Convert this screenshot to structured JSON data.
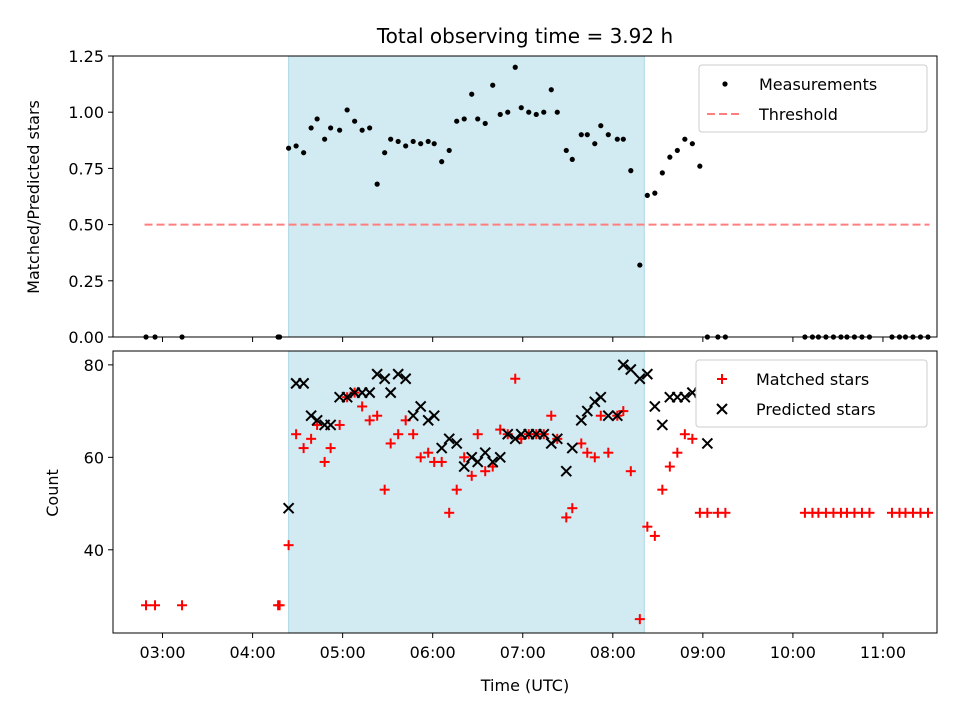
{
  "chart_data": [
    {
      "type": "scatter",
      "title": "Total observing time = 3.92 h",
      "xlabel": "",
      "ylabel": "Matched/Predicted stars",
      "ylim": [
        0,
        1.25
      ],
      "yticks": [
        "0.00",
        "0.25",
        "0.50",
        "0.75",
        "1.00",
        "1.25"
      ],
      "xticks": [
        "03:00",
        "04:00",
        "05:00",
        "06:00",
        "07:00",
        "08:00",
        "09:00",
        "10:00",
        "11:00"
      ],
      "x_axis_tick_labels_shown": false,
      "shaded_interval": [
        "04:24",
        "08:21"
      ],
      "shade_color": "#add8e6",
      "legend_position": "upper right",
      "series": [
        {
          "name": "Measurements",
          "style": "dot",
          "color": "#000000",
          "x": [
            "02:49",
            "02:55",
            "03:13",
            "04:17",
            "04:18",
            "04:24",
            "04:29",
            "04:34",
            "04:39",
            "04:43",
            "04:48",
            "04:52",
            "04:58",
            "05:03",
            "05:08",
            "05:13",
            "05:18",
            "05:23",
            "05:28",
            "05:32",
            "05:37",
            "05:42",
            "05:47",
            "05:52",
            "05:57",
            "06:01",
            "06:06",
            "06:11",
            "06:16",
            "06:21",
            "06:26",
            "06:30",
            "06:35",
            "06:40",
            "06:45",
            "06:50",
            "06:55",
            "06:59",
            "07:04",
            "07:09",
            "07:14",
            "07:19",
            "07:23",
            "07:29",
            "07:33",
            "07:39",
            "07:43",
            "07:48",
            "07:52",
            "07:57",
            "08:03",
            "08:07",
            "08:12",
            "08:18",
            "08:23",
            "08:28",
            "08:33",
            "08:38",
            "08:43",
            "08:48",
            "08:53",
            "08:58",
            "09:03",
            "09:10",
            "09:15",
            "10:08",
            "10:13",
            "10:17",
            "10:22",
            "10:27",
            "10:32",
            "10:36",
            "10:41",
            "10:46",
            "10:51",
            "11:06",
            "11:11",
            "11:15",
            "11:20",
            "11:25",
            "11:30"
          ],
          "y": [
            0.0,
            0.0,
            0.0,
            0.0,
            0.0,
            0.84,
            0.85,
            0.82,
            0.93,
            0.97,
            0.88,
            0.93,
            0.92,
            1.01,
            0.96,
            0.92,
            0.93,
            0.68,
            0.82,
            0.88,
            0.87,
            0.85,
            0.87,
            0.86,
            0.87,
            0.86,
            0.78,
            0.83,
            0.96,
            0.97,
            1.08,
            0.97,
            0.95,
            1.12,
            0.99,
            1.0,
            1.2,
            1.02,
            1.0,
            0.99,
            1.0,
            1.1,
            1.0,
            0.83,
            0.79,
            0.9,
            0.9,
            0.86,
            0.94,
            0.9,
            0.88,
            0.88,
            0.74,
            0.32,
            0.63,
            0.64,
            0.73,
            0.8,
            0.83,
            0.88,
            0.86,
            0.76,
            0.0,
            0.0,
            0.0,
            0.0,
            0.0,
            0.0,
            0.0,
            0.0,
            0.0,
            0.0,
            0.0,
            0.0,
            0.0,
            0.0,
            0.0,
            0.0,
            0.0,
            0.0,
            0.0
          ]
        },
        {
          "name": "Threshold",
          "style": "dashed-line",
          "color": "#ff7f7f",
          "x": [
            "02:48",
            "11:31"
          ],
          "y": [
            0.5,
            0.5
          ]
        }
      ]
    },
    {
      "type": "scatter",
      "title": "",
      "xlabel": "Time (UTC)",
      "ylabel": "Count",
      "ylim": [
        22,
        83
      ],
      "yticks": [
        "40",
        "60",
        "80"
      ],
      "xticks": [
        "03:00",
        "04:00",
        "05:00",
        "06:00",
        "07:00",
        "08:00",
        "09:00",
        "10:00",
        "11:00"
      ],
      "shaded_interval": [
        "04:24",
        "08:21"
      ],
      "shade_color": "#add8e6",
      "legend_position": "upper right",
      "series": [
        {
          "name": "Matched stars",
          "style": "plus",
          "color": "#ff0000",
          "x": [
            "02:49",
            "02:55",
            "03:13",
            "04:17",
            "04:18",
            "04:24",
            "04:29",
            "04:34",
            "04:39",
            "04:43",
            "04:48",
            "04:52",
            "04:58",
            "05:03",
            "05:08",
            "05:13",
            "05:18",
            "05:23",
            "05:28",
            "05:32",
            "05:37",
            "05:42",
            "05:47",
            "05:52",
            "05:57",
            "06:01",
            "06:06",
            "06:11",
            "06:16",
            "06:21",
            "06:26",
            "06:30",
            "06:35",
            "06:40",
            "06:45",
            "06:50",
            "06:55",
            "06:59",
            "07:04",
            "07:09",
            "07:14",
            "07:19",
            "07:23",
            "07:29",
            "07:33",
            "07:39",
            "07:43",
            "07:48",
            "07:52",
            "07:57",
            "08:03",
            "08:07",
            "08:12",
            "08:18",
            "08:23",
            "08:28",
            "08:33",
            "08:38",
            "08:43",
            "08:48",
            "08:53",
            "08:58",
            "09:03",
            "09:10",
            "09:15",
            "10:08",
            "10:13",
            "10:17",
            "10:22",
            "10:27",
            "10:32",
            "10:36",
            "10:41",
            "10:46",
            "10:51",
            "11:06",
            "11:11",
            "11:15",
            "11:20",
            "11:25",
            "11:30"
          ],
          "y": [
            28,
            28,
            28,
            28,
            28,
            41,
            65,
            62,
            64,
            67,
            59,
            62,
            67,
            73,
            74,
            71,
            68,
            69,
            53,
            63,
            65,
            68,
            65,
            60,
            61,
            59,
            59,
            48,
            53,
            60,
            56,
            65,
            57,
            58,
            66,
            65,
            77,
            64,
            65,
            65,
            65,
            69,
            64,
            47,
            49,
            63,
            61,
            60,
            69,
            61,
            69,
            70,
            57,
            25,
            45,
            43,
            53,
            58,
            61,
            65,
            64,
            48,
            48,
            48,
            48,
            48,
            48,
            48,
            48,
            48,
            48,
            48,
            48,
            48,
            48,
            48,
            48,
            48,
            48,
            48,
            48
          ]
        },
        {
          "name": "Predicted stars",
          "style": "x",
          "color": "#000000",
          "x": [
            "04:24",
            "04:29",
            "04:34",
            "04:39",
            "04:43",
            "04:48",
            "04:52",
            "04:58",
            "05:03",
            "05:08",
            "05:13",
            "05:18",
            "05:23",
            "05:28",
            "05:32",
            "05:37",
            "05:42",
            "05:47",
            "05:52",
            "05:57",
            "06:01",
            "06:06",
            "06:11",
            "06:16",
            "06:21",
            "06:26",
            "06:30",
            "06:35",
            "06:40",
            "06:45",
            "06:50",
            "06:55",
            "06:59",
            "07:04",
            "07:09",
            "07:14",
            "07:19",
            "07:23",
            "07:29",
            "07:33",
            "07:39",
            "07:43",
            "07:48",
            "07:52",
            "07:57",
            "08:03",
            "08:07",
            "08:12",
            "08:18",
            "08:23",
            "08:28",
            "08:33",
            "08:38",
            "08:43",
            "08:48",
            "08:53",
            "08:58",
            "09:03"
          ],
          "y": [
            49,
            76,
            76,
            69,
            68,
            67,
            67,
            73,
            73,
            74,
            74,
            74,
            78,
            77,
            74,
            78,
            77,
            69,
            71,
            68,
            69,
            62,
            64,
            63,
            58,
            60,
            59,
            61,
            59,
            60,
            65,
            64,
            65,
            65,
            65,
            65,
            63,
            64,
            57,
            62,
            68,
            70,
            72,
            73,
            69,
            69,
            80,
            79,
            77,
            78,
            71,
            67,
            73,
            73,
            73,
            74,
            74,
            63
          ]
        }
      ]
    }
  ]
}
